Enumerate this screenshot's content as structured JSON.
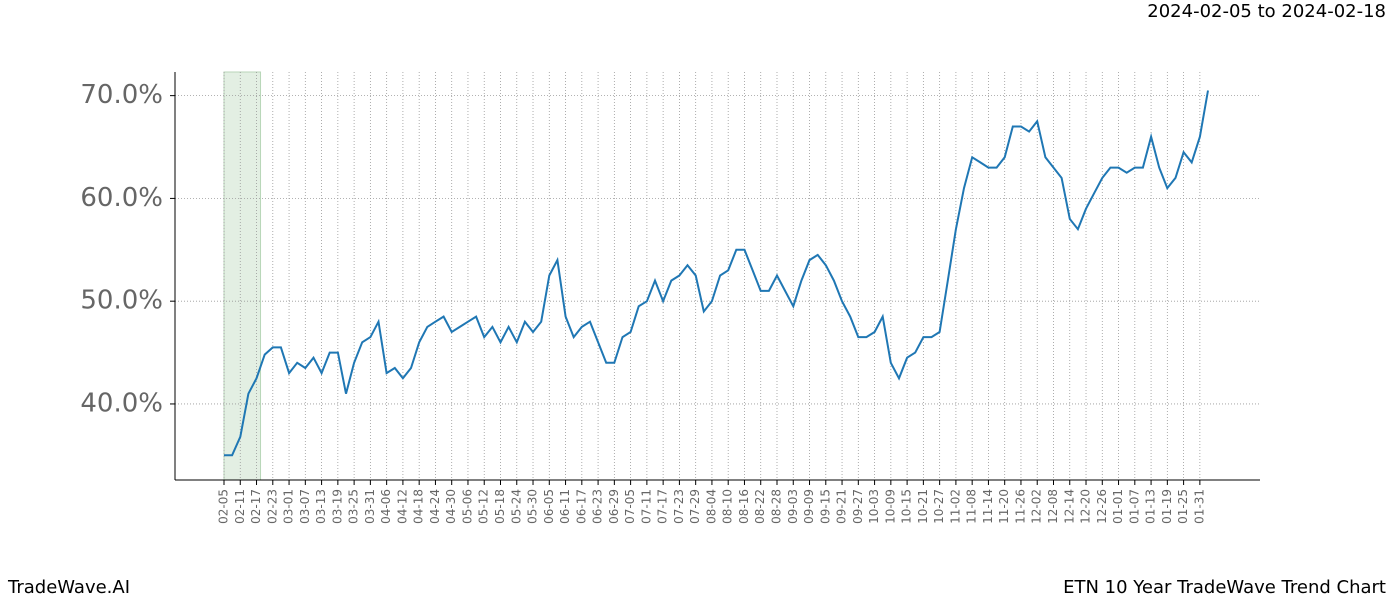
{
  "header": "2024-02-05 to 2024-02-18",
  "footer": {
    "left": "TradeWave.AI",
    "right": "ETN 10 Year TradeWave Trend Chart"
  },
  "chart_data": {
    "type": "line",
    "categories": [
      "02-05",
      null,
      "02-11",
      null,
      "02-17",
      null,
      "02-23",
      null,
      "03-01",
      null,
      "03-07",
      null,
      "03-13",
      null,
      "03-19",
      null,
      "03-25",
      null,
      "03-31",
      null,
      "04-06",
      null,
      "04-12",
      null,
      "04-18",
      null,
      "04-24",
      null,
      "04-30",
      null,
      "05-06",
      null,
      "05-12",
      null,
      "05-18",
      null,
      "05-24",
      null,
      "05-30",
      null,
      "06-05",
      null,
      "06-11",
      null,
      "06-17",
      null,
      "06-23",
      null,
      "06-29",
      null,
      "07-05",
      null,
      "07-11",
      null,
      "07-17",
      null,
      "07-23",
      null,
      "07-29",
      null,
      "08-04",
      null,
      "08-10",
      null,
      "08-16",
      null,
      "08-22",
      null,
      "08-28",
      null,
      "09-03",
      null,
      "09-09",
      null,
      "09-15",
      null,
      "09-21",
      null,
      "09-27",
      null,
      "10-03",
      null,
      "10-09",
      null,
      "10-15",
      null,
      "10-21",
      null,
      "10-27",
      null,
      "11-02",
      null,
      "11-08",
      null,
      "11-14",
      null,
      "11-20",
      null,
      "11-26",
      null,
      "12-02",
      null,
      "12-08",
      null,
      "12-14",
      null,
      "12-20",
      null,
      "12-26",
      null,
      "01-01",
      null,
      "01-07",
      null,
      "01-13",
      null,
      "01-19",
      null,
      "01-25",
      null,
      "01-31",
      null
    ],
    "series": [
      {
        "color": "#1f77b4",
        "values": [
          35.0,
          35.0,
          36.8,
          41,
          42.5,
          44.8,
          45.5,
          45.5,
          43,
          44,
          43.5,
          44.5,
          43,
          45,
          45,
          41,
          44,
          46,
          46.5,
          48,
          43,
          43.5,
          42.5,
          43.5,
          46,
          47.5,
          48,
          48.5,
          47,
          47.5,
          48,
          48.5,
          46.5,
          47.5,
          46,
          47.5,
          46,
          48,
          47,
          48,
          52.5,
          54,
          48.5,
          46.5,
          47.5,
          48,
          46,
          44,
          44,
          46.5,
          47,
          49.5,
          50,
          52,
          50,
          52,
          52.5,
          53.5,
          52.5,
          49,
          50,
          52.5,
          53,
          55,
          55,
          53,
          51,
          51,
          52.5,
          51,
          49.5,
          52,
          54,
          54.5,
          53.5,
          52,
          50,
          48.5,
          46.5,
          46.5,
          47,
          48.5,
          44,
          42.5,
          44.5,
          45,
          46.5,
          46.5,
          47,
          52,
          57,
          61,
          64,
          63.5,
          63,
          63,
          64,
          67,
          67,
          66.5,
          67.5,
          64,
          63,
          62,
          58,
          57,
          59,
          60.5,
          62,
          63,
          63,
          62.5,
          63,
          63,
          66,
          63,
          61,
          62,
          64.5,
          63.5,
          66,
          70.5
        ]
      }
    ],
    "ylim": [
      32.6,
      72.3
    ],
    "yticks": [
      {
        "value": 40,
        "label": "40.0%"
      },
      {
        "value": 50,
        "label": "50.0%"
      },
      {
        "value": 60,
        "label": "60.0%"
      },
      {
        "value": 70,
        "label": "70.0%"
      }
    ],
    "grid": true,
    "highlight": {
      "from": "02-05",
      "to": "02-17",
      "color": "#e3efe3"
    }
  }
}
